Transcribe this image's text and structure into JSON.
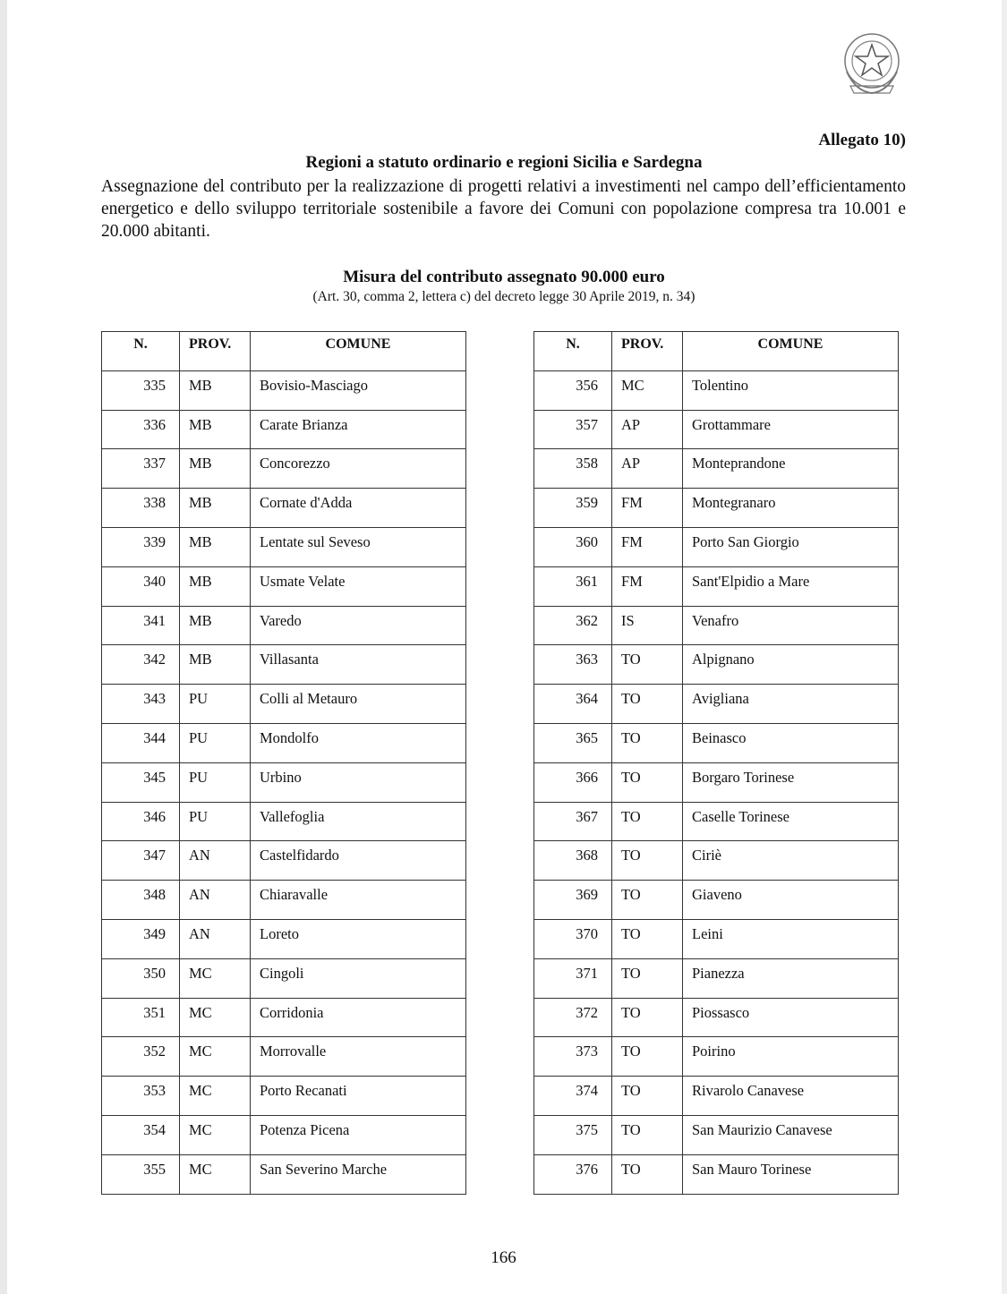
{
  "header": {
    "emblem": "Emblema della Repubblica Italiana",
    "allegato": "Allegato 10)",
    "title": "Regioni a statuto ordinario e regioni Sicilia e Sardegna",
    "intro": "Assegnazione del contributo per la realizzazione di progetti relativi a investimenti nel campo dell’efficientamento energetico e dello sviluppo territoriale sostenibile a favore dei Comuni con popolazione compresa tra 10.001 e 20.000 abitanti.",
    "measure": "Misura del contributo assegnato 90.000 euro",
    "reference": "(Art. 30, comma 2, lettera c) del decreto legge 30 Aprile 2019, n. 34)"
  },
  "columns": [
    "N.",
    "PROV.",
    "COMUNE"
  ],
  "left_table": [
    [
      "335",
      "MB",
      "Bovisio-Masciago"
    ],
    [
      "336",
      "MB",
      "Carate Brianza"
    ],
    [
      "337",
      "MB",
      "Concorezzo"
    ],
    [
      "338",
      "MB",
      "Cornate d'Adda"
    ],
    [
      "339",
      "MB",
      "Lentate sul Seveso"
    ],
    [
      "340",
      "MB",
      "Usmate Velate"
    ],
    [
      "341",
      "MB",
      "Varedo"
    ],
    [
      "342",
      "MB",
      "Villasanta"
    ],
    [
      "343",
      "PU",
      "Colli al Metauro"
    ],
    [
      "344",
      "PU",
      "Mondolfo"
    ],
    [
      "345",
      "PU",
      "Urbino"
    ],
    [
      "346",
      "PU",
      "Vallefoglia"
    ],
    [
      "347",
      "AN",
      "Castelfidardo"
    ],
    [
      "348",
      "AN",
      "Chiaravalle"
    ],
    [
      "349",
      "AN",
      "Loreto"
    ],
    [
      "350",
      "MC",
      "Cingoli"
    ],
    [
      "351",
      "MC",
      "Corridonia"
    ],
    [
      "352",
      "MC",
      "Morrovalle"
    ],
    [
      "353",
      "MC",
      "Porto Recanati"
    ],
    [
      "354",
      "MC",
      "Potenza Picena"
    ],
    [
      "355",
      "MC",
      "San Severino Marche"
    ]
  ],
  "right_table": [
    [
      "356",
      "MC",
      "Tolentino"
    ],
    [
      "357",
      "AP",
      "Grottammare"
    ],
    [
      "358",
      "AP",
      "Monteprandone"
    ],
    [
      "359",
      "FM",
      "Montegranaro"
    ],
    [
      "360",
      "FM",
      "Porto San Giorgio"
    ],
    [
      "361",
      "FM",
      "Sant'Elpidio a Mare"
    ],
    [
      "362",
      "IS",
      "Venafro"
    ],
    [
      "363",
      "TO",
      "Alpignano"
    ],
    [
      "364",
      "TO",
      "Avigliana"
    ],
    [
      "365",
      "TO",
      "Beinasco"
    ],
    [
      "366",
      "TO",
      "Borgaro Torinese"
    ],
    [
      "367",
      "TO",
      "Caselle Torinese"
    ],
    [
      "368",
      "TO",
      "Ciriè"
    ],
    [
      "369",
      "TO",
      "Giaveno"
    ],
    [
      "370",
      "TO",
      "Leini"
    ],
    [
      "371",
      "TO",
      "Pianezza"
    ],
    [
      "372",
      "TO",
      "Piossasco"
    ],
    [
      "373",
      "TO",
      "Poirino"
    ],
    [
      "374",
      "TO",
      "Rivarolo Canavese"
    ],
    [
      "375",
      "TO",
      "San Maurizio Canavese"
    ],
    [
      "376",
      "TO",
      "San Mauro Torinese"
    ]
  ],
  "page_number": "166"
}
